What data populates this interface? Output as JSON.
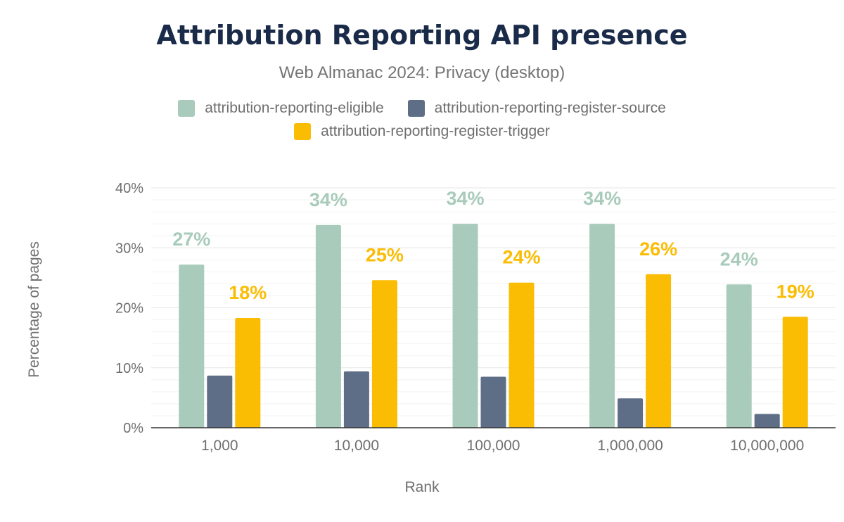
{
  "chart_data": {
    "type": "bar",
    "title": "Attribution Reporting API presence",
    "subtitle": "Web Almanac 2024: Privacy (desktop)",
    "xlabel": "Rank",
    "ylabel": "Percentage of pages",
    "ylim": [
      0,
      40
    ],
    "yticks": [
      "0%",
      "10%",
      "20%",
      "30%",
      "40%"
    ],
    "grid": true,
    "legend_position": "top",
    "categories": [
      "1,000",
      "10,000",
      "100,000",
      "1,000,000",
      "10,000,000"
    ],
    "series": [
      {
        "name": "attribution-reporting-eligible",
        "color": "#a8cbbb",
        "values": [
          27.2,
          33.8,
          34.0,
          34.0,
          23.9
        ],
        "data_labels": [
          "27%",
          "34%",
          "34%",
          "34%",
          "24%"
        ]
      },
      {
        "name": "attribution-reporting-register-source",
        "color": "#5e6e86",
        "values": [
          8.7,
          9.4,
          8.5,
          4.9,
          2.3
        ],
        "data_labels": [
          "",
          "",
          "",
          "",
          ""
        ]
      },
      {
        "name": "attribution-reporting-register-trigger",
        "color": "#fbbc04",
        "values": [
          18.3,
          24.6,
          24.2,
          25.6,
          18.5
        ],
        "data_labels": [
          "18%",
          "25%",
          "24%",
          "26%",
          "19%"
        ]
      }
    ]
  }
}
